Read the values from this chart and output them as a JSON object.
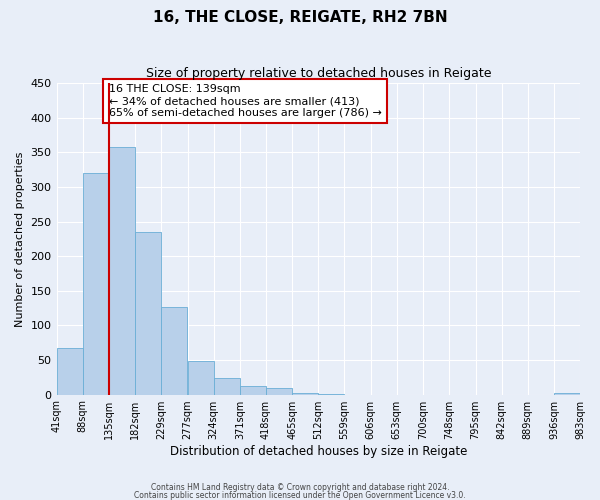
{
  "title": "16, THE CLOSE, REIGATE, RH2 7BN",
  "subtitle": "Size of property relative to detached houses in Reigate",
  "xlabel": "Distribution of detached houses by size in Reigate",
  "ylabel": "Number of detached properties",
  "bar_values": [
    67,
    320,
    358,
    235,
    126,
    48,
    24,
    13,
    10,
    3,
    1,
    0,
    0,
    0,
    0,
    0,
    0,
    0,
    0,
    2
  ],
  "bin_edges": [
    41,
    88,
    135,
    182,
    229,
    277,
    324,
    371,
    418,
    465,
    512,
    559,
    606,
    653,
    700,
    748,
    795,
    842,
    889,
    936,
    983
  ],
  "tick_labels": [
    "41sqm",
    "88sqm",
    "135sqm",
    "182sqm",
    "229sqm",
    "277sqm",
    "324sqm",
    "371sqm",
    "418sqm",
    "465sqm",
    "512sqm",
    "559sqm",
    "606sqm",
    "653sqm",
    "700sqm",
    "748sqm",
    "795sqm",
    "842sqm",
    "889sqm",
    "936sqm",
    "983sqm"
  ],
  "bar_color": "#b8d0ea",
  "bar_edgecolor": "#6aaed6",
  "vline_x": 135,
  "vline_color": "#cc0000",
  "annotation_text": "16 THE CLOSE: 139sqm\n← 34% of detached houses are smaller (413)\n65% of semi-detached houses are larger (786) →",
  "annotation_box_color": "#ffffff",
  "annotation_box_edgecolor": "#cc0000",
  "ylim": [
    0,
    450
  ],
  "yticks": [
    0,
    50,
    100,
    150,
    200,
    250,
    300,
    350,
    400,
    450
  ],
  "background_color": "#e8eef8",
  "grid_color": "#ffffff",
  "footer_line1": "Contains HM Land Registry data © Crown copyright and database right 2024.",
  "footer_line2": "Contains public sector information licensed under the Open Government Licence v3.0."
}
